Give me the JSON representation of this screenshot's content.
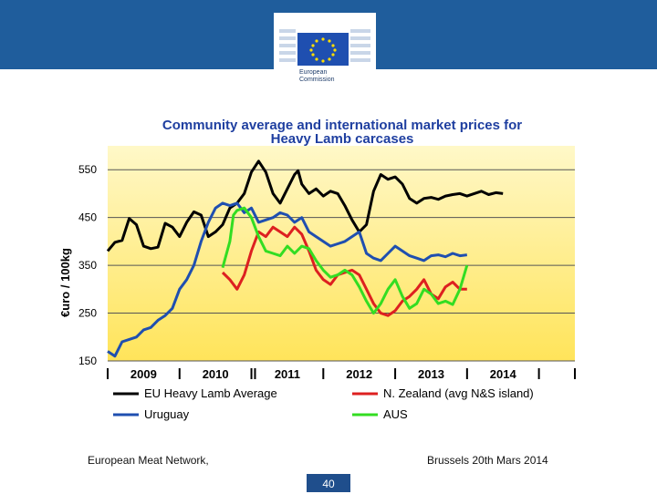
{
  "header": {
    "org_line1": "European",
    "org_line2": "Commission",
    "brand_color": "#1f5d9c"
  },
  "footer": {
    "left": "European Meat Network,",
    "right": "Brussels 20th Mars 2014",
    "page_number": "40"
  },
  "chart_data": {
    "type": "line",
    "title_line1": "Community  average and international market prices for",
    "title_line2": "Heavy Lamb carcases",
    "ylabel": "€uro / 100kg",
    "ylim": [
      150,
      600
    ],
    "yticks": [
      150,
      250,
      350,
      450,
      550
    ],
    "xlim": [
      2008.0,
      2014.5
    ],
    "year_labels": [
      "2009",
      "2010",
      "2011",
      "2012",
      "2013",
      "2014"
    ],
    "year_label_x": [
      2008.5,
      2009.5,
      2010.5,
      2011.5,
      2012.5,
      2013.5
    ],
    "separators": [
      2008.0,
      2009.0,
      2010.0,
      2010.05,
      2011.0,
      2012.0,
      2013.0,
      2014.0,
      2014.5
    ],
    "series": [
      {
        "name": "EU Heavy Lamb Average",
        "color": "#000000",
        "x": [
          2008.0,
          2008.1,
          2008.2,
          2008.3,
          2008.4,
          2008.5,
          2008.6,
          2008.7,
          2008.8,
          2008.9,
          2009.0,
          2009.1,
          2009.2,
          2009.3,
          2009.4,
          2009.5,
          2009.6,
          2009.7,
          2009.8,
          2009.9,
          2010.0,
          2010.1,
          2010.2,
          2010.3,
          2010.4,
          2010.5,
          2010.6,
          2010.65,
          2010.7,
          2010.8,
          2010.9,
          2011.0,
          2011.1,
          2011.2,
          2011.3,
          2011.4,
          2011.5,
          2011.6,
          2011.7,
          2011.8,
          2011.9,
          2012.0,
          2012.1,
          2012.2,
          2012.3,
          2012.4,
          2012.5,
          2012.6,
          2012.7,
          2012.8,
          2012.9,
          2013.0,
          2013.1,
          2013.2,
          2013.3,
          2013.4,
          2013.5
        ],
        "y": [
          380,
          398,
          402,
          448,
          435,
          390,
          385,
          388,
          438,
          430,
          410,
          440,
          462,
          455,
          410,
          420,
          435,
          470,
          480,
          500,
          545,
          568,
          545,
          500,
          480,
          510,
          540,
          548,
          520,
          500,
          510,
          495,
          505,
          500,
          475,
          445,
          420,
          435,
          505,
          540,
          530,
          535,
          520,
          490,
          480,
          490,
          492,
          488,
          495,
          498,
          500,
          495,
          500,
          505,
          498,
          502,
          500
        ]
      },
      {
        "name": "Uruguay",
        "color": "#1f4fb0",
        "x": [
          2008.0,
          2008.1,
          2008.2,
          2008.3,
          2008.4,
          2008.5,
          2008.6,
          2008.7,
          2008.8,
          2008.9,
          2009.0,
          2009.1,
          2009.2,
          2009.3,
          2009.4,
          2009.5,
          2009.6,
          2009.7,
          2009.8,
          2009.9,
          2010.0,
          2010.1,
          2010.2,
          2010.3,
          2010.4,
          2010.5,
          2010.6,
          2010.7,
          2010.8,
          2010.9,
          2011.0,
          2011.1,
          2011.2,
          2011.3,
          2011.4,
          2011.5,
          2011.6,
          2011.7,
          2011.8,
          2011.9,
          2012.0,
          2012.1,
          2012.2,
          2012.3,
          2012.4,
          2012.5,
          2012.6,
          2012.7,
          2012.8,
          2012.9,
          2013.0
        ],
        "y": [
          170,
          160,
          190,
          195,
          200,
          215,
          220,
          235,
          245,
          260,
          300,
          320,
          350,
          400,
          440,
          470,
          480,
          475,
          480,
          460,
          470,
          440,
          445,
          450,
          460,
          455,
          440,
          450,
          420,
          410,
          400,
          390,
          395,
          400,
          410,
          420,
          375,
          365,
          360,
          375,
          390,
          380,
          370,
          365,
          360,
          370,
          372,
          368,
          375,
          370,
          372
        ]
      },
      {
        "name": "N. Zealand (avg N&S island)",
        "color": "#dd2020",
        "x": [
          2009.6,
          2009.7,
          2009.8,
          2009.9,
          2010.0,
          2010.1,
          2010.2,
          2010.3,
          2010.4,
          2010.5,
          2010.6,
          2010.7,
          2010.8,
          2010.9,
          2011.0,
          2011.1,
          2011.2,
          2011.3,
          2011.4,
          2011.5,
          2011.6,
          2011.7,
          2011.8,
          2011.9,
          2012.0,
          2012.1,
          2012.2,
          2012.3,
          2012.4,
          2012.5,
          2012.6,
          2012.7,
          2012.8,
          2012.9,
          2013.0
        ],
        "y": [
          335,
          320,
          300,
          330,
          380,
          420,
          410,
          430,
          420,
          410,
          430,
          415,
          380,
          340,
          320,
          310,
          330,
          335,
          340,
          330,
          300,
          270,
          250,
          245,
          255,
          275,
          285,
          300,
          320,
          290,
          280,
          305,
          315,
          300,
          300
        ]
      },
      {
        "name": "AUS",
        "color": "#33dd22",
        "x": [
          2009.6,
          2009.7,
          2009.75,
          2009.8,
          2009.9,
          2010.0,
          2010.1,
          2010.2,
          2010.3,
          2010.4,
          2010.5,
          2010.6,
          2010.7,
          2010.8,
          2010.9,
          2011.0,
          2011.1,
          2011.2,
          2011.3,
          2011.4,
          2011.5,
          2011.6,
          2011.7,
          2011.8,
          2011.9,
          2012.0,
          2012.1,
          2012.2,
          2012.3,
          2012.4,
          2012.5,
          2012.6,
          2012.7,
          2012.8,
          2012.9,
          2013.0
        ],
        "y": [
          345,
          400,
          455,
          465,
          470,
          450,
          410,
          380,
          375,
          370,
          390,
          375,
          390,
          385,
          360,
          340,
          325,
          330,
          340,
          330,
          305,
          275,
          250,
          270,
          300,
          320,
          285,
          260,
          270,
          300,
          290,
          270,
          275,
          268,
          300,
          350
        ]
      }
    ],
    "legend": [
      {
        "label": "EU Heavy Lamb Average",
        "color": "#000000",
        "position": "left-row1"
      },
      {
        "label": "N. Zealand (avg N&S island)",
        "color": "#dd2020",
        "position": "right-row1"
      },
      {
        "label": "Uruguay",
        "color": "#1f4fb0",
        "position": "left-row2"
      },
      {
        "label": "AUS",
        "color": "#33dd22",
        "position": "right-row2"
      }
    ]
  }
}
